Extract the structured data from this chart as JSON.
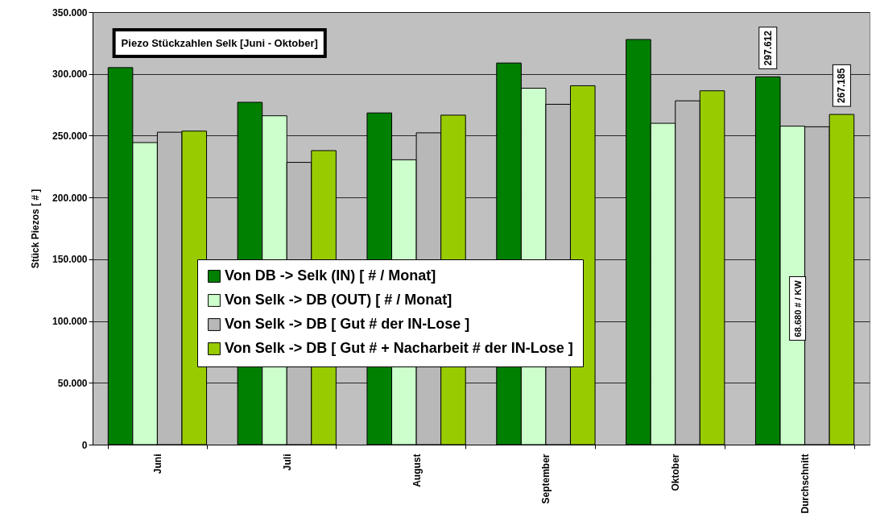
{
  "chart_data": {
    "type": "bar",
    "title": "Piezo Stückzahlen Selk [Juni - Oktober]",
    "ylabel": "Stück Piezos [ # ]",
    "categories": [
      "Juni",
      "Juli",
      "August",
      "September",
      "Oktober",
      "Durchschnitt"
    ],
    "series": [
      {
        "name": "Von DB -> Selk (IN) [ # / Monat]",
        "color": "#008000",
        "values": [
          305100,
          277000,
          268400,
          308800,
          327800,
          297612
        ],
        "value_labels": [
          null,
          null,
          null,
          null,
          null,
          "297.612"
        ]
      },
      {
        "name": "Von Selk -> DB (OUT) [ # / Monat]",
        "color": "#ccffcc",
        "values": [
          244400,
          266100,
          230500,
          288400,
          260000,
          257700
        ]
      },
      {
        "name": "Von Selk -> DB [ Gut # der IN-Lose ]",
        "color": "#b8b8b8",
        "values": [
          252800,
          228400,
          252300,
          275400,
          278200,
          257200
        ]
      },
      {
        "name": "Von Selk -> DB [ Gut # + Nacharbeit # der IN-Lose ]",
        "color": "#99cc00",
        "values": [
          253700,
          237900,
          266600,
          290400,
          286300,
          267185
        ],
        "value_labels": [
          null,
          null,
          null,
          null,
          null,
          "267.185"
        ]
      }
    ],
    "annotations": [
      {
        "text": "68.680 # / KW",
        "x": "Durchschnitt",
        "y": 110000
      }
    ],
    "ylim": [
      0,
      350000
    ],
    "yticks": [
      {
        "value": 0,
        "label": "0"
      },
      {
        "value": 50000,
        "label": "50.000"
      },
      {
        "value": 100000,
        "label": "100.000"
      },
      {
        "value": 150000,
        "label": "150.000"
      },
      {
        "value": 200000,
        "label": "200.000"
      },
      {
        "value": 250000,
        "label": "250.000"
      },
      {
        "value": 300000,
        "label": "300.000"
      },
      {
        "value": 350000,
        "label": "350.000"
      }
    ],
    "grid": "y",
    "legend": "bottom"
  }
}
